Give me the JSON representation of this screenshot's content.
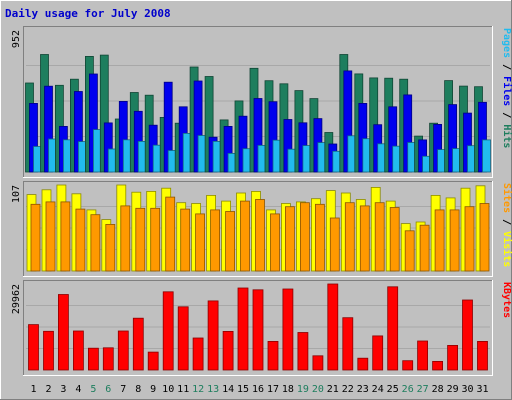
{
  "chart_data": {
    "type": "bar",
    "title": "Daily usage for July 2008",
    "categories": [
      "1",
      "2",
      "3",
      "4",
      "5",
      "6",
      "7",
      "8",
      "9",
      "10",
      "11",
      "12",
      "13",
      "14",
      "15",
      "16",
      "17",
      "18",
      "19",
      "20",
      "21",
      "22",
      "23",
      "24",
      "25",
      "26",
      "27",
      "28",
      "29",
      "30",
      "31"
    ],
    "weekend_days": [
      "5",
      "6",
      "12",
      "13",
      "19",
      "20",
      "26",
      "27"
    ],
    "panels": [
      {
        "name": "hits-files-pages",
        "ymax_label": "952",
        "ymax": 952,
        "right_label": {
          "parts": [
            "Pages",
            " / ",
            "Files",
            " / ",
            "Hits"
          ]
        },
        "series": [
          {
            "name": "Hits",
            "color": "#1e7e5e",
            "values": [
              597,
              788,
              581,
              622,
              775,
              784,
              355,
              533,
              515,
              366,
              327,
              704,
              640,
              349,
              477,
              695,
              612,
              591,
              546,
              492,
              265,
              788,
              658,
              631,
              629,
              622,
              241,
              327,
              613,
              576,
              572
            ]
          },
          {
            "name": "Files",
            "color": "#0000ee",
            "values": [
              460,
              575,
              306,
              540,
              657,
              329,
              473,
              407,
              314,
              602,
              437,
              610,
              233,
              306,
              374,
              493,
              471,
              352,
              330,
              358,
              188,
              678,
              460,
              317,
              437,
              517,
              215,
              319,
              452,
              395,
              467
            ]
          },
          {
            "name": "Pages",
            "color": "#22bbee",
            "values": [
              171,
              221,
              216,
              204,
              284,
              154,
              216,
              205,
              180,
              144,
              259,
              245,
              205,
              125,
              156,
              178,
              213,
              153,
              177,
              197,
              139,
              243,
              223,
              189,
              173,
              198,
              105,
              150,
              157,
              176,
              215
            ]
          }
        ]
      },
      {
        "name": "visits-sites",
        "ymax_label": "107",
        "ymax": 107,
        "right_label": {
          "parts": [
            "Sites",
            " / ",
            "Visits"
          ]
        },
        "series": [
          {
            "name": "Visits",
            "color": "#ffff00",
            "values": [
              95,
              101,
              107,
              96,
              76,
              64,
              107,
              98,
              99,
              103,
              85,
              84,
              94,
              87,
              97,
              99,
              76,
              84,
              86,
              90,
              100,
              97,
              89,
              104,
              87,
              59,
              61,
              94,
              91,
              103,
              106
            ]
          },
          {
            "name": "Sites",
            "color": "#ff9900",
            "values": [
              83,
              86,
              86,
              77,
              70,
              58,
              81,
              78,
              78,
              92,
              77,
              71,
              76,
              74,
              87,
              89,
              71,
              80,
              85,
              83,
              66,
              85,
              81,
              85,
              79,
              50,
              57,
              76,
              76,
              80,
              84
            ]
          }
        ]
      },
      {
        "name": "kbytes",
        "ymax_label": "29962",
        "ymax": 29962,
        "right_label": {
          "parts": [
            "KBytes"
          ]
        },
        "series": [
          {
            "name": "KBytes",
            "color": "#ff0000",
            "values": [
              15806,
              13466,
              26314,
              13584,
              7602,
              7718,
              13583,
              18049,
              6252,
              27252,
              22011,
              11133,
              24071,
              13434,
              28565,
              27954,
              9957,
              28212,
              13077,
              4941,
              29962,
              18225,
              4113,
              11875,
              28979,
              3234,
              10096,
              3000,
              8559,
              24388,
              9961
            ]
          }
        ]
      }
    ]
  }
}
